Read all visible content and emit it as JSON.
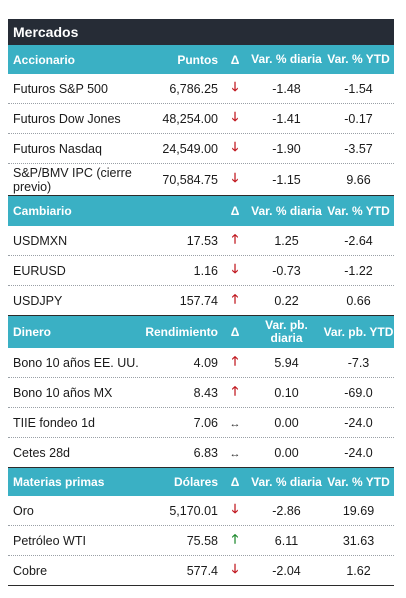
{
  "title": "Mercados",
  "sections": [
    {
      "id": "accionario",
      "header": [
        "Accionario",
        "Puntos",
        "Δ",
        "Var. % diaria",
        "Var. % YTD"
      ],
      "rows": [
        {
          "name": "Futuros S&P 500",
          "value": "6,786.25",
          "dir": "down",
          "daily": "-1.48",
          "ytd": "-1.54"
        },
        {
          "name": "Futuros Dow Jones",
          "value": "48,254.00",
          "dir": "down",
          "daily": "-1.41",
          "ytd": "-0.17"
        },
        {
          "name": "Futuros Nasdaq",
          "value": "24,549.00",
          "dir": "down",
          "daily": "-1.90",
          "ytd": "-3.57"
        },
        {
          "name": "S&P/BMV IPC (cierre previo)",
          "value": "70,584.75",
          "dir": "down",
          "daily": "-1.15",
          "ytd": "9.66"
        }
      ]
    },
    {
      "id": "cambiario",
      "header": [
        "Cambiario",
        "",
        "Δ",
        "Var. % diaria",
        "Var. % YTD"
      ],
      "rows": [
        {
          "name": "USDMXN",
          "value": "17.53",
          "dir": "up",
          "daily": "1.25",
          "ytd": "-2.64"
        },
        {
          "name": "EURUSD",
          "value": "1.16",
          "dir": "down",
          "daily": "-0.73",
          "ytd": "-1.22"
        },
        {
          "name": "USDJPY",
          "value": "157.74",
          "dir": "up",
          "daily": "0.22",
          "ytd": "0.66"
        }
      ]
    },
    {
      "id": "dinero",
      "header": [
        "Dinero",
        "Rendimiento",
        "Δ",
        "Var. pb. diaria",
        "Var. pb. YTD"
      ],
      "rows": [
        {
          "name": "Bono 10 años EE. UU.",
          "value": "4.09",
          "dir": "up",
          "daily": "5.94",
          "ytd": "-7.3"
        },
        {
          "name": "Bono 10 años MX",
          "value": "8.43",
          "dir": "up",
          "daily": "0.10",
          "ytd": "-69.0"
        },
        {
          "name": "TIIE fondeo 1d",
          "value": "7.06",
          "dir": "flat",
          "daily": "0.00",
          "ytd": "-24.0"
        },
        {
          "name": "Cetes 28d",
          "value": "6.83",
          "dir": "flat",
          "daily": "0.00",
          "ytd": "-24.0"
        }
      ]
    },
    {
      "id": "materias",
      "header": [
        "Materias primas",
        "Dólares",
        "Δ",
        "Var. % diaria",
        "Var. % YTD"
      ],
      "rows": [
        {
          "name": "Oro",
          "value": "5,170.01",
          "dir": "down",
          "daily": "-2.86",
          "ytd": "19.69"
        },
        {
          "name": "Petróleo WTI",
          "value": "75.58",
          "dir": "up-green",
          "daily": "6.11",
          "ytd": "31.63"
        },
        {
          "name": "Cobre",
          "value": "577.4",
          "dir": "down",
          "daily": "-2.04",
          "ytd": "1.62"
        }
      ]
    }
  ],
  "colors": {
    "title_bg": "#262c36",
    "section_bg": "#3ab0c4",
    "down": "#c0161d",
    "up": "#c0161d",
    "up_green": "#1f8a2e"
  }
}
